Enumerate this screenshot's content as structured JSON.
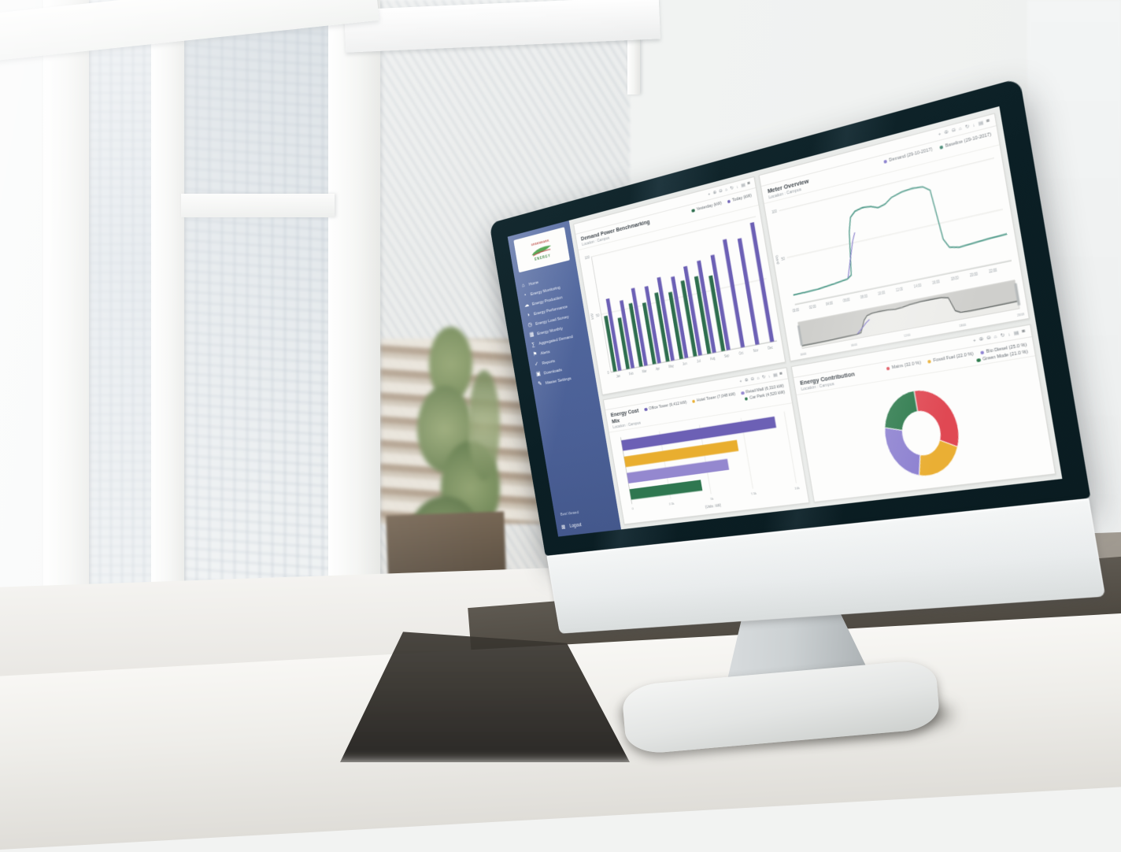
{
  "colors": {
    "sidebar_blue": "#4a5f95",
    "bar_green": "#2e6e4e",
    "bar_purple": "#6c60b5",
    "bar_yellow": "#e9ae2f",
    "bar_lavender": "#9488cf",
    "line_teal": "#4f9a89",
    "line_purple": "#8177c9",
    "donut_red": "#e04853",
    "donut_yellow": "#eaaf34",
    "donut_purple": "#8c80d0",
    "donut_green": "#2d7a4c"
  },
  "logo": {
    "name": "GREENMARK",
    "tagline": "ENERGY"
  },
  "sidebar": {
    "items": [
      {
        "icon": "home-icon",
        "glyph": "⌂",
        "label": "Home"
      },
      {
        "icon": "monitoring-icon",
        "glyph": "◔",
        "label": "Energy Monitoring"
      },
      {
        "icon": "production-icon",
        "glyph": "☁",
        "label": "Energy Production"
      },
      {
        "icon": "performance-icon",
        "glyph": "◑",
        "label": "Energy Performance"
      },
      {
        "icon": "load-icon",
        "glyph": "◷",
        "label": "Energy Load Survey"
      },
      {
        "icon": "monthly-icon",
        "glyph": "▦",
        "label": "Energy Monthly"
      },
      {
        "icon": "aggregated-icon",
        "glyph": "∑",
        "label": "Aggregated Demand"
      },
      {
        "icon": "alerts-icon",
        "glyph": "⚑",
        "label": "Alerts"
      },
      {
        "icon": "reports-icon",
        "glyph": "✓",
        "label": "Reports"
      },
      {
        "icon": "downloads-icon",
        "glyph": "▣",
        "label": "Downloads"
      },
      {
        "icon": "settings-icon",
        "glyph": "✎",
        "label": "Master Settings"
      }
    ],
    "footer_note": "Best Viewed",
    "logout_label": "Logout",
    "logout_glyph": "⊠"
  },
  "panel_toolbar": [
    {
      "name": "pan-icon",
      "glyph": "+"
    },
    {
      "name": "zoom-in-icon",
      "glyph": "⊕"
    },
    {
      "name": "zoom-out-icon",
      "glyph": "⊖"
    },
    {
      "name": "home-view-icon",
      "glyph": "⌂"
    },
    {
      "name": "refresh-icon",
      "glyph": "↻"
    },
    {
      "name": "download-icon",
      "glyph": "↓"
    },
    {
      "name": "grid-icon",
      "glyph": "▤"
    },
    {
      "name": "menu-icon",
      "glyph": "≡"
    }
  ],
  "panels": [
    {
      "title": "Demand Power Benchmarking",
      "subtitle": "Location : Campus",
      "legend": [
        {
          "label": "Yesterday (kW)",
          "color": "#2e6e4e"
        },
        {
          "label": "Today (kW)",
          "color": "#6c60b5"
        }
      ]
    },
    {
      "title": "Meter Overview",
      "subtitle": "Location : Campus",
      "legend": [
        {
          "label": "Demand (29-10-2017)",
          "color": "#8177c9"
        },
        {
          "label": "Baseline (29-10-2017)",
          "color": "#2d7a62"
        }
      ]
    },
    {
      "title": "Energy Cost Mix",
      "subtitle": "Location : Campus",
      "legend": [
        {
          "label": "Office Tower (9,412 kW)",
          "color": "#6c60b5"
        },
        {
          "label": "Hotel Tower (7,048 kW)",
          "color": "#e9ae2f"
        },
        {
          "label": "Retail Mall (6,310 kW)",
          "color": "#9488cf"
        },
        {
          "label": "Car Park (4,520 kW)",
          "color": "#2f7750"
        }
      ]
    },
    {
      "title": "Energy Contribution",
      "subtitle": "Location : Campus",
      "legend": [
        {
          "label": "Mains (32.0 %)",
          "color": "#e04853"
        },
        {
          "label": "Fossil Fuel (22.0 %)",
          "color": "#eaaf34"
        },
        {
          "label": "Bio Diesel (25.0 %)",
          "color": "#8c80d0"
        },
        {
          "label": "Green Mode (21.0 %)",
          "color": "#2d7a4c"
        }
      ]
    }
  ],
  "chart_data": [
    {
      "type": "bar",
      "title": "Demand Power Benchmarking",
      "categories": [
        "Jan",
        "Feb",
        "Mar",
        "Apr",
        "May",
        "Jun",
        "Jul",
        "Aug",
        "Sep",
        "Oct",
        "Nov",
        "Dec"
      ],
      "series": [
        {
          "name": "Yesterday (kW)",
          "color": "#2e6e4e",
          "values": [
            48,
            44,
            54,
            52,
            58,
            56,
            63,
            64,
            62,
            null,
            null,
            null
          ]
        },
        {
          "name": "Today (kW)",
          "color": "#6c60b5",
          "values": [
            62,
            58,
            66,
            65,
            70,
            68,
            74,
            76,
            78,
            88,
            86,
            96
          ]
        }
      ],
      "ylabel": "kW",
      "ylim": [
        0,
        100
      ],
      "yticks": [
        0,
        50,
        100
      ],
      "grid": true,
      "legend_position": "top"
    },
    {
      "type": "line",
      "title": "Meter Overview",
      "x_range": [
        0,
        24
      ],
      "xticks": [
        "00:00",
        "02:00",
        "04:00",
        "06:00",
        "08:00",
        "10:00",
        "12:00",
        "14:00",
        "16:00",
        "18:00",
        "20:00",
        "22:00"
      ],
      "series": [
        {
          "name": "Baseline (29-10-2017)",
          "color": "#4f9a89",
          "points": [
            [
              0,
              10
            ],
            [
              3,
              11
            ],
            [
              5,
              13
            ],
            [
              6.5,
              15
            ],
            [
              7,
              18
            ],
            [
              7.6,
              62
            ],
            [
              8,
              76
            ],
            [
              8.6,
              81
            ],
            [
              9.5,
              83
            ],
            [
              10.4,
              82
            ],
            [
              11.2,
              79
            ],
            [
              12,
              81
            ],
            [
              12.8,
              86
            ],
            [
              14,
              89
            ],
            [
              15.2,
              90
            ],
            [
              16.3,
              89
            ],
            [
              17,
              84
            ],
            [
              17.5,
              34
            ],
            [
              18,
              25
            ],
            [
              19,
              23
            ],
            [
              20.5,
              24
            ],
            [
              22,
              25
            ],
            [
              24,
              26
            ]
          ]
        },
        {
          "name": "Demand (29-10-2017)",
          "color": "#8177c9",
          "points": [
            [
              6.6,
              16
            ],
            [
              7.2,
              34
            ],
            [
              7.8,
              52
            ],
            [
              8.2,
              60
            ]
          ]
        }
      ],
      "ylabel": "(kW)",
      "ylim": [
        0,
        100
      ],
      "yticks": [
        50,
        100
      ],
      "grid": true,
      "navigator": {
        "labels": [
          "00:00",
          "06:00",
          "12:00",
          "18:00",
          "23:59"
        ]
      }
    },
    {
      "type": "hbar",
      "title": "Energy Cost Mix",
      "categories": [
        "Office Tower",
        "Hotel Tower",
        "Retail Mall",
        "Car Park"
      ],
      "values": [
        9412,
        7048,
        6310,
        4520
      ],
      "colors": [
        "#6c60b5",
        "#e9ae2f",
        "#9488cf",
        "#2f7750"
      ],
      "xlim": [
        0,
        10000
      ],
      "xticks": [
        "0",
        "2.5k",
        "5k",
        "7.5k",
        "10k"
      ],
      "xlabel": "(Units : kW)"
    },
    {
      "type": "donut",
      "title": "Energy Contribution",
      "slices": [
        {
          "label": "Mains",
          "pct": 32,
          "color": "#e04853"
        },
        {
          "label": "Fossil Fuel",
          "pct": 22,
          "color": "#eaaf34"
        },
        {
          "label": "Bio Diesel",
          "pct": 25,
          "color": "#8c80d0"
        },
        {
          "label": "Green Mode",
          "pct": 21,
          "color": "#2d7a4c"
        }
      ]
    }
  ]
}
